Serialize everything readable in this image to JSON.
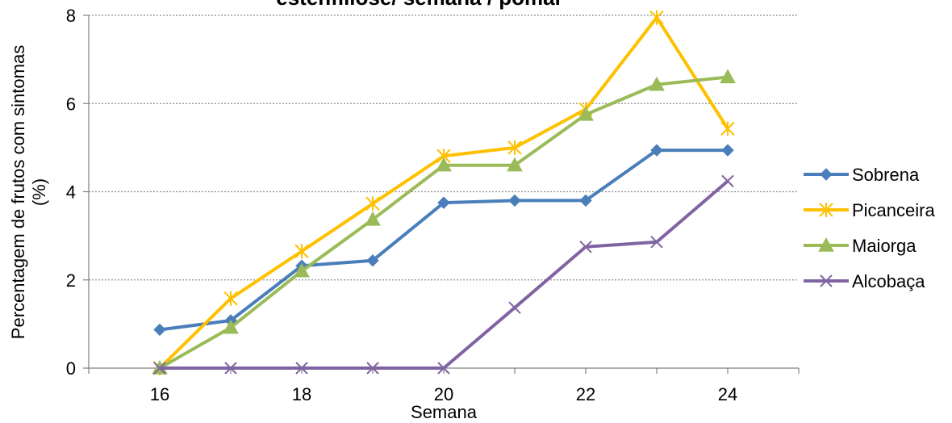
{
  "chart_data": {
    "type": "line",
    "title": "estenfiliose/ semana / pomar",
    "xlabel": "Semana",
    "ylabel_line1": "Percentagem de frutos com sintomas",
    "ylabel_line2": "(%)",
    "x": [
      16,
      17,
      18,
      19,
      20,
      21,
      22,
      23,
      24
    ],
    "xlim": [
      15,
      25
    ],
    "ylim": [
      0,
      8
    ],
    "x_ticks": [
      16,
      18,
      20,
      22,
      24
    ],
    "y_ticks": [
      0,
      2,
      4,
      6,
      8
    ],
    "grid": "horizontal dotted",
    "legend_position": "right",
    "series": [
      {
        "name": "Sobrena",
        "color": "#4a7ebb",
        "marker": "diamond",
        "values": [
          0.87,
          1.08,
          2.32,
          2.44,
          3.75,
          3.8,
          3.8,
          4.94,
          4.94
        ]
      },
      {
        "name": "Picanceira",
        "color": "#ffc000",
        "marker": "star",
        "values": [
          0.0,
          1.58,
          2.65,
          3.73,
          4.81,
          5.0,
          5.87,
          7.95,
          5.43
        ]
      },
      {
        "name": "Maiorga",
        "color": "#9bbb59",
        "marker": "triangle",
        "values": [
          0.0,
          0.92,
          2.2,
          3.37,
          4.6,
          4.6,
          5.75,
          6.43,
          6.6
        ]
      },
      {
        "name": "Alcobaça",
        "color": "#8064a2",
        "marker": "x",
        "values": [
          0.0,
          0.0,
          0.0,
          0.0,
          0.0,
          1.37,
          2.75,
          2.86,
          4.24
        ]
      }
    ]
  }
}
